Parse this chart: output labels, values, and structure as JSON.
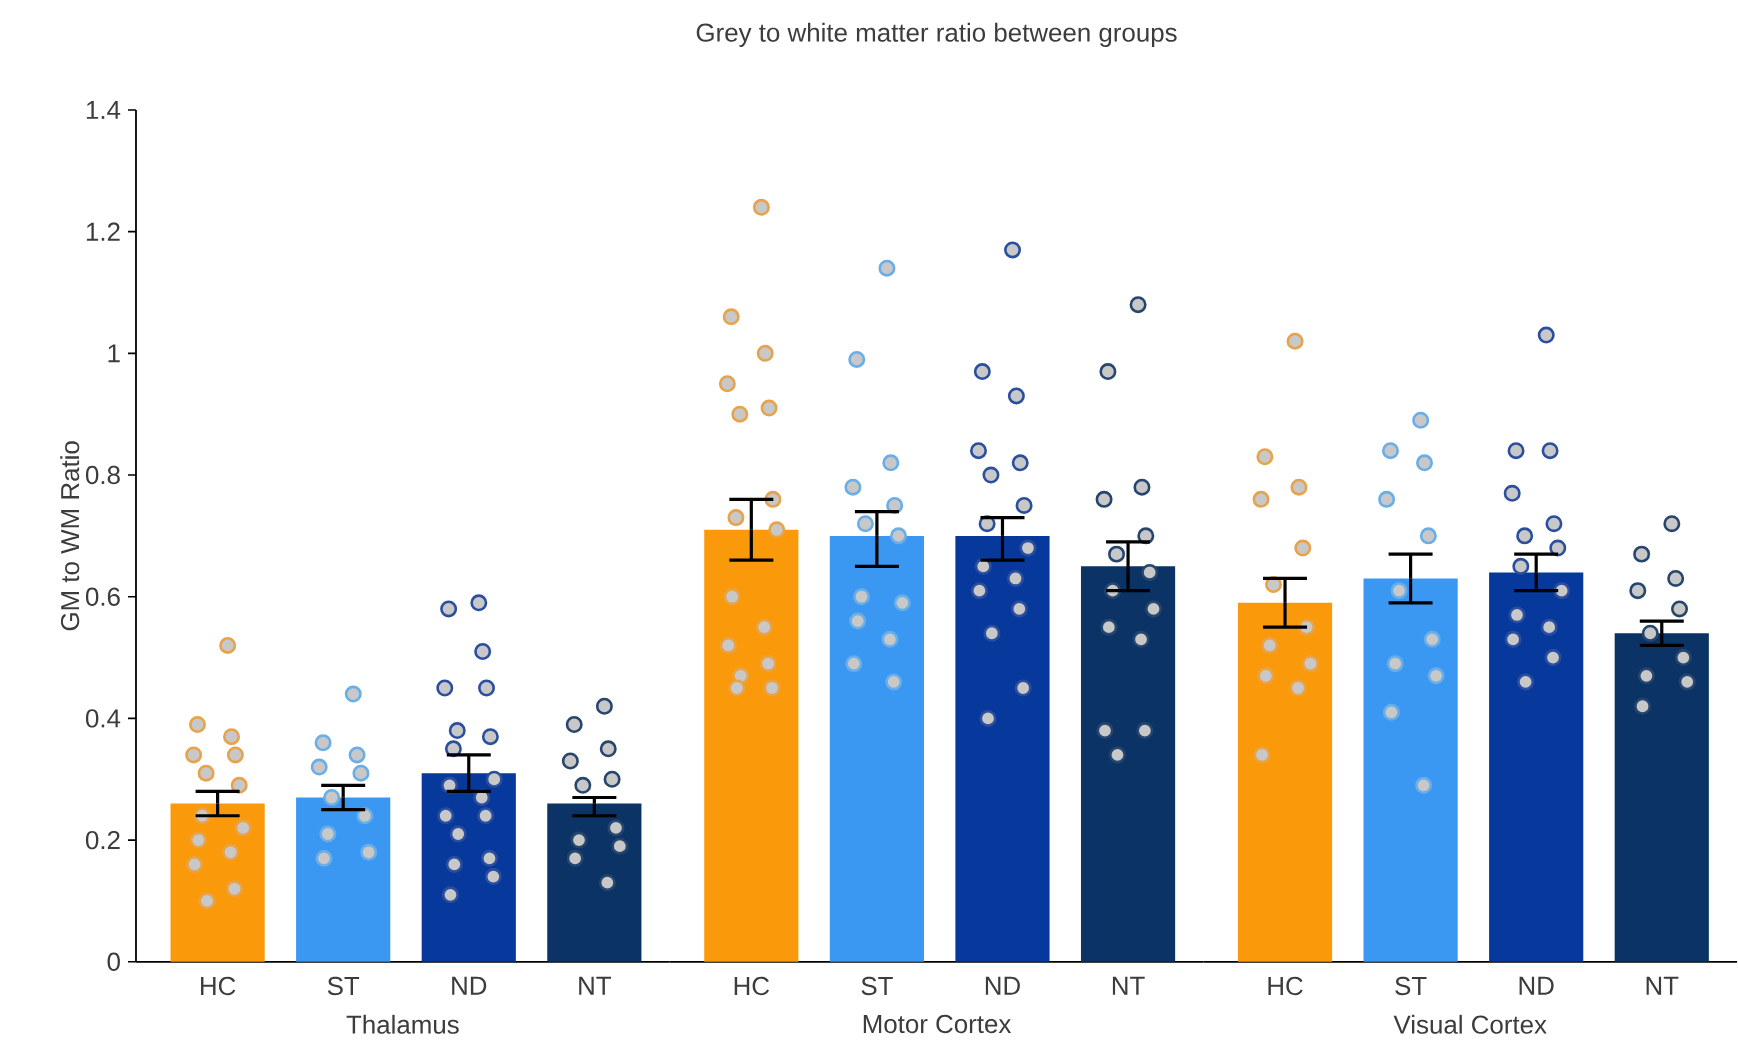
{
  "chart_data": [
    {
      "type": "bar",
      "ylabel": "GM to WM Ratio",
      "xlabel": "Thalamus",
      "categories": [
        "HC",
        "ST",
        "ND",
        "NT"
      ],
      "values": [
        0.26,
        0.27,
        0.31,
        0.26
      ],
      "colors": [
        "#fa9a0a",
        "#3a98f2",
        "#07399c",
        "#0b3366"
      ],
      "errors": [
        [
          0.24,
          0.28
        ],
        [
          0.25,
          0.29
        ],
        [
          0.28,
          0.34
        ],
        [
          0.24,
          0.27
        ]
      ],
      "series": [
        {
          "type": "scatter",
          "color": "#e8a34a",
          "x": [
            "HC",
            "HC",
            "HC",
            "HC",
            "HC",
            "HC",
            "HC",
            "HC",
            "HC",
            "HC",
            "HC",
            "HC",
            "HC",
            "HC"
          ],
          "values": [
            0.52,
            0.39,
            0.37,
            0.34,
            0.34,
            0.31,
            0.29,
            0.24,
            0.22,
            0.2,
            0.18,
            0.16,
            0.12,
            0.1
          ]
        },
        {
          "type": "scatter",
          "color": "#6aaee8",
          "x": [
            "ST",
            "ST",
            "ST",
            "ST",
            "ST",
            "ST",
            "ST",
            "ST",
            "ST",
            "ST"
          ],
          "values": [
            0.44,
            0.36,
            0.34,
            0.32,
            0.31,
            0.27,
            0.24,
            0.21,
            0.18,
            0.17
          ]
        },
        {
          "type": "scatter",
          "color": "#2b4f9e",
          "x": [
            "ND",
            "ND",
            "ND",
            "ND",
            "ND",
            "ND",
            "ND",
            "ND",
            "ND",
            "ND",
            "ND",
            "ND",
            "ND",
            "ND",
            "ND",
            "ND",
            "ND",
            "ND"
          ],
          "values": [
            0.59,
            0.58,
            0.51,
            0.45,
            0.45,
            0.38,
            0.37,
            0.35,
            0.3,
            0.29,
            0.27,
            0.24,
            0.24,
            0.21,
            0.17,
            0.16,
            0.14,
            0.11
          ]
        },
        {
          "type": "scatter",
          "color": "#27466e",
          "x": [
            "NT",
            "NT",
            "NT",
            "NT",
            "NT",
            "NT",
            "NT",
            "NT",
            "NT",
            "NT",
            "NT"
          ],
          "values": [
            0.42,
            0.39,
            0.35,
            0.33,
            0.3,
            0.29,
            0.22,
            0.2,
            0.19,
            0.17,
            0.13
          ]
        }
      ],
      "ylim": [
        0,
        1.4
      ],
      "yticks": [
        0,
        0.2,
        0.4,
        0.6,
        0.8,
        1,
        1.2,
        1.4
      ],
      "grid": false
    },
    {
      "type": "bar",
      "title": "Grey to white matter ratio between groups",
      "xlabel": "Motor Cortex",
      "categories": [
        "HC",
        "ST",
        "ND",
        "NT"
      ],
      "values": [
        0.71,
        0.7,
        0.7,
        0.65
      ],
      "colors": [
        "#fa9a0a",
        "#3a98f2",
        "#07399c",
        "#0b3366"
      ],
      "errors": [
        [
          0.66,
          0.76
        ],
        [
          0.65,
          0.74
        ],
        [
          0.66,
          0.73
        ],
        [
          0.61,
          0.69
        ]
      ],
      "series": [
        {
          "type": "scatter",
          "color": "#e8a34a",
          "x": [
            "HC",
            "HC",
            "HC",
            "HC",
            "HC",
            "HC",
            "HC",
            "HC",
            "HC",
            "HC",
            "HC",
            "HC",
            "HC",
            "HC",
            "HC",
            "HC"
          ],
          "values": [
            1.24,
            1.06,
            1.0,
            0.95,
            0.91,
            0.9,
            0.76,
            0.73,
            0.71,
            0.6,
            0.55,
            0.52,
            0.49,
            0.47,
            0.45,
            0.45
          ]
        },
        {
          "type": "scatter",
          "color": "#6aaee8",
          "x": [
            "ST",
            "ST",
            "ST",
            "ST",
            "ST",
            "ST",
            "ST",
            "ST",
            "ST",
            "ST",
            "ST",
            "ST",
            "ST"
          ],
          "values": [
            1.14,
            0.99,
            0.82,
            0.78,
            0.75,
            0.72,
            0.7,
            0.6,
            0.59,
            0.56,
            0.53,
            0.49,
            0.46
          ]
        },
        {
          "type": "scatter",
          "color": "#2b4f9e",
          "x": [
            "ND",
            "ND",
            "ND",
            "ND",
            "ND",
            "ND",
            "ND",
            "ND",
            "ND",
            "ND",
            "ND",
            "ND",
            "ND",
            "ND",
            "ND",
            "ND"
          ],
          "values": [
            1.17,
            0.97,
            0.93,
            0.84,
            0.82,
            0.8,
            0.75,
            0.72,
            0.68,
            0.65,
            0.63,
            0.61,
            0.58,
            0.54,
            0.45,
            0.4
          ]
        },
        {
          "type": "scatter",
          "color": "#27466e",
          "x": [
            "NT",
            "NT",
            "NT",
            "NT",
            "NT",
            "NT",
            "NT",
            "NT",
            "NT",
            "NT",
            "NT",
            "NT",
            "NT",
            "NT"
          ],
          "values": [
            1.08,
            0.97,
            0.78,
            0.76,
            0.7,
            0.67,
            0.64,
            0.61,
            0.58,
            0.55,
            0.53,
            0.38,
            0.38,
            0.34
          ]
        }
      ],
      "ylim": [
        0,
        1.4
      ],
      "grid": false,
      "tick_labels": "x"
    },
    {
      "type": "bar",
      "xlabel": "Visual Cortex",
      "categories": [
        "HC",
        "ST",
        "ND",
        "NT"
      ],
      "values": [
        0.59,
        0.63,
        0.64,
        0.54
      ],
      "colors": [
        "#fa9a0a",
        "#3a98f2",
        "#07399c",
        "#0b3366"
      ],
      "errors": [
        [
          0.55,
          0.63
        ],
        [
          0.59,
          0.67
        ],
        [
          0.61,
          0.67
        ],
        [
          0.52,
          0.56
        ]
      ],
      "series": [
        {
          "type": "scatter",
          "color": "#e8a34a",
          "x": [
            "HC",
            "HC",
            "HC",
            "HC",
            "HC",
            "HC",
            "HC",
            "HC",
            "HC",
            "HC",
            "HC",
            "HC"
          ],
          "values": [
            1.02,
            0.83,
            0.78,
            0.76,
            0.68,
            0.62,
            0.55,
            0.52,
            0.49,
            0.47,
            0.45,
            0.34
          ]
        },
        {
          "type": "scatter",
          "color": "#6aaee8",
          "x": [
            "ST",
            "ST",
            "ST",
            "ST",
            "ST",
            "ST",
            "ST",
            "ST",
            "ST",
            "ST",
            "ST"
          ],
          "values": [
            0.89,
            0.84,
            0.82,
            0.76,
            0.7,
            0.61,
            0.53,
            0.49,
            0.47,
            0.41,
            0.29
          ]
        },
        {
          "type": "scatter",
          "color": "#2b4f9e",
          "x": [
            "ND",
            "ND",
            "ND",
            "ND",
            "ND",
            "ND",
            "ND",
            "ND",
            "ND",
            "ND",
            "ND",
            "ND",
            "ND",
            "ND"
          ],
          "values": [
            1.03,
            0.84,
            0.84,
            0.77,
            0.72,
            0.7,
            0.68,
            0.65,
            0.61,
            0.57,
            0.55,
            0.53,
            0.5,
            0.46
          ]
        },
        {
          "type": "scatter",
          "color": "#27466e",
          "x": [
            "NT",
            "NT",
            "NT",
            "NT",
            "NT",
            "NT",
            "NT",
            "NT",
            "NT",
            "NT"
          ],
          "values": [
            0.72,
            0.67,
            0.63,
            0.61,
            0.58,
            0.54,
            0.5,
            0.47,
            0.46,
            0.42
          ]
        }
      ],
      "ylim": [
        0,
        1.4
      ],
      "grid": false,
      "tick_labels": "x"
    }
  ]
}
